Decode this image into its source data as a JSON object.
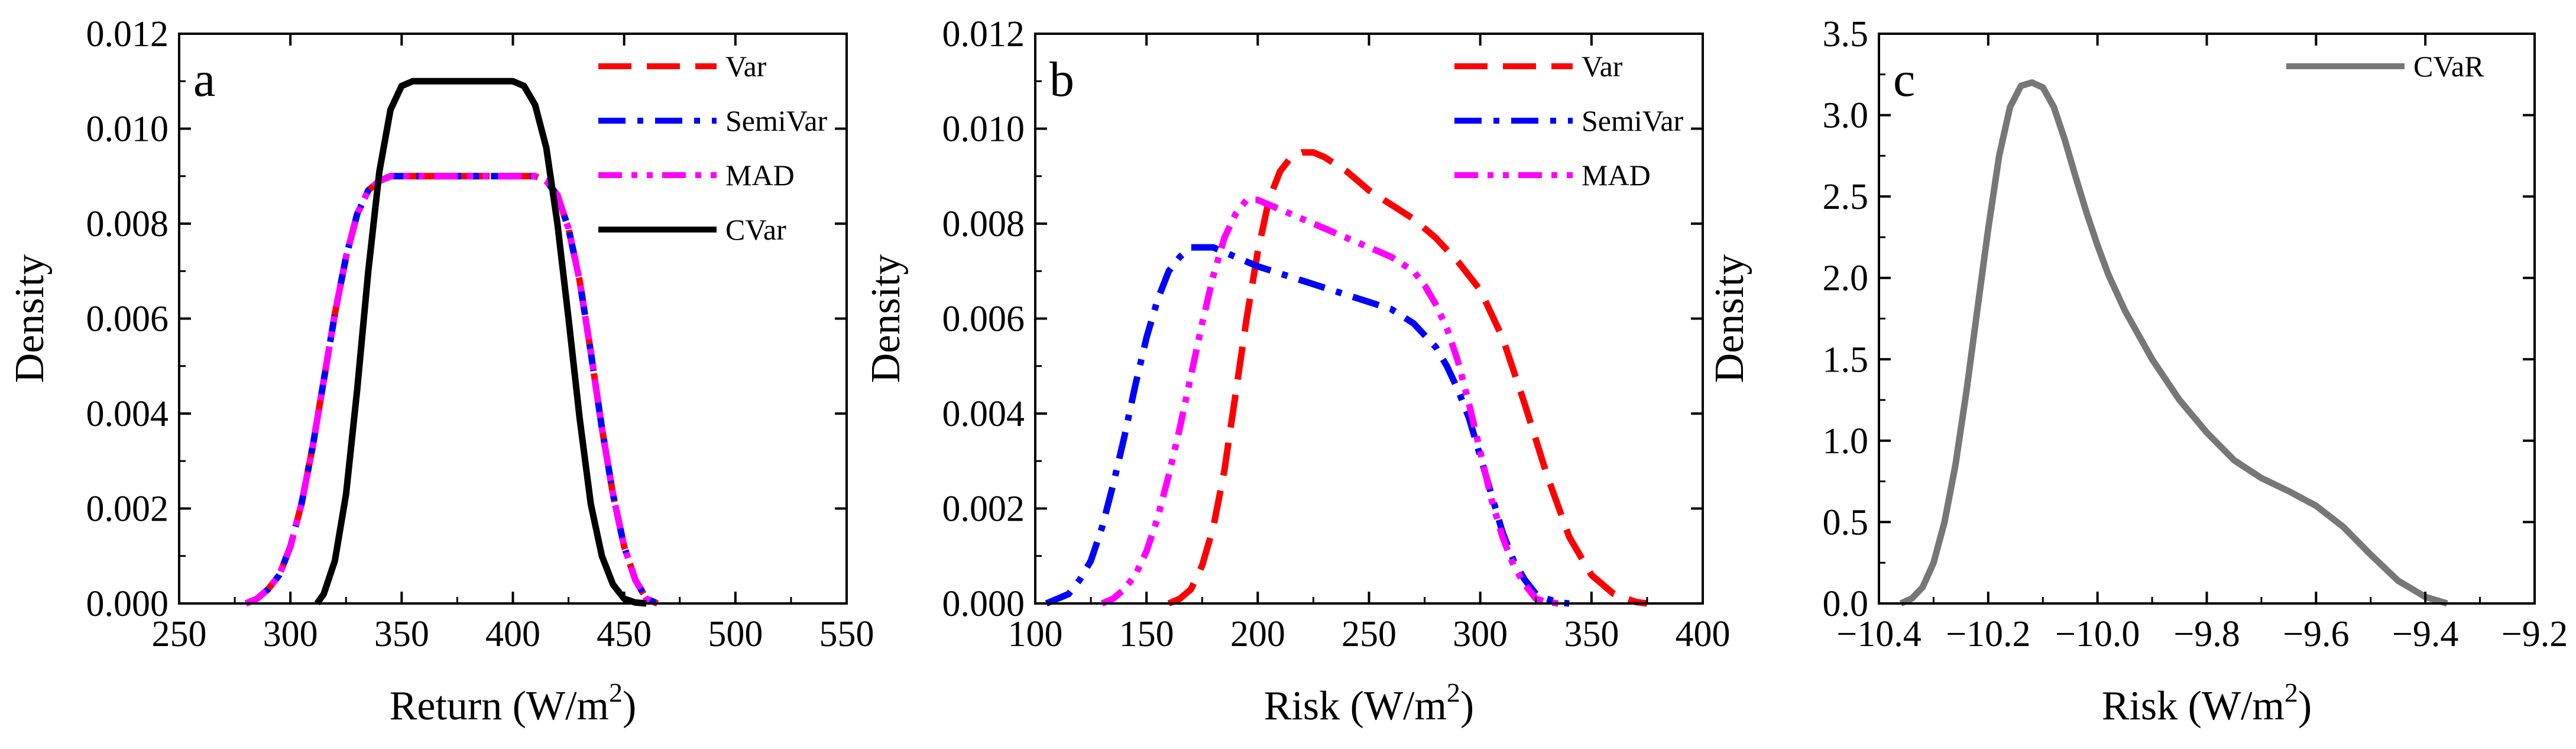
{
  "chart_data": [
    {
      "panel_label": "a",
      "type": "line",
      "xlabel": "Return (W/m",
      "xlabel_sup": "2",
      "xlabel_end": ")",
      "ylabel": "Density",
      "xlim": [
        250,
        550
      ],
      "ylim": [
        0,
        0.012
      ],
      "xticks": [
        "250",
        "300",
        "350",
        "400",
        "450",
        "500",
        "550"
      ],
      "yticks": [
        "0.000",
        "0.002",
        "0.004",
        "0.006",
        "0.008",
        "0.010",
        "0.012"
      ],
      "legend_position": "top-right",
      "series": [
        {
          "name": "Var",
          "color": "#ff0000",
          "dash": "dash",
          "x": [
            280,
            285,
            290,
            295,
            300,
            305,
            310,
            315,
            320,
            325,
            330,
            335,
            340,
            345,
            350,
            360,
            380,
            400,
            410,
            415,
            420,
            425,
            430,
            435,
            440,
            445,
            450,
            455,
            460,
            465
          ],
          "y": [
            0,
            0.0001,
            0.0003,
            0.0006,
            0.0012,
            0.0021,
            0.0033,
            0.0047,
            0.0061,
            0.0073,
            0.0082,
            0.0087,
            0.0089,
            0.009,
            0.009,
            0.009,
            0.009,
            0.009,
            0.009,
            0.0089,
            0.0086,
            0.0079,
            0.0068,
            0.0053,
            0.0037,
            0.0023,
            0.0012,
            0.0005,
            0.0001,
            0
          ]
        },
        {
          "name": "SemiVar",
          "color": "#0000ff",
          "dash": "dashdot",
          "x": [
            280,
            285,
            290,
            295,
            300,
            305,
            310,
            315,
            320,
            325,
            330,
            335,
            340,
            345,
            350,
            360,
            380,
            400,
            410,
            415,
            420,
            425,
            430,
            435,
            440,
            445,
            450,
            455,
            460,
            465
          ],
          "y": [
            0,
            0.0001,
            0.0003,
            0.0006,
            0.0012,
            0.0021,
            0.0033,
            0.0047,
            0.0061,
            0.0073,
            0.0082,
            0.0087,
            0.0089,
            0.009,
            0.009,
            0.009,
            0.009,
            0.009,
            0.009,
            0.0089,
            0.0086,
            0.0079,
            0.0068,
            0.0053,
            0.0037,
            0.0023,
            0.0012,
            0.0005,
            0.0001,
            0
          ]
        },
        {
          "name": "MAD",
          "color": "#ff00ff",
          "dash": "dashdotdot",
          "x": [
            280,
            285,
            290,
            295,
            300,
            305,
            310,
            315,
            320,
            325,
            330,
            335,
            340,
            345,
            350,
            360,
            380,
            400,
            410,
            415,
            420,
            425,
            430,
            435,
            440,
            445,
            450,
            455,
            460,
            465
          ],
          "y": [
            0,
            0.0001,
            0.0003,
            0.0006,
            0.0012,
            0.0021,
            0.0033,
            0.0047,
            0.0061,
            0.0073,
            0.0082,
            0.0087,
            0.0089,
            0.009,
            0.009,
            0.009,
            0.009,
            0.009,
            0.009,
            0.0089,
            0.0086,
            0.0079,
            0.0068,
            0.0053,
            0.0037,
            0.0023,
            0.0012,
            0.0005,
            0.0001,
            0
          ]
        },
        {
          "name": "CVar",
          "color": "#000000",
          "dash": "solid",
          "x": [
            312,
            315,
            320,
            325,
            330,
            335,
            340,
            345,
            350,
            355,
            360,
            370,
            380,
            390,
            400,
            405,
            410,
            415,
            420,
            425,
            430,
            435,
            440,
            445,
            450,
            455,
            460
          ],
          "y": [
            0,
            0.0002,
            0.0009,
            0.0023,
            0.0045,
            0.007,
            0.0091,
            0.0104,
            0.0109,
            0.011,
            0.011,
            0.011,
            0.011,
            0.011,
            0.011,
            0.0109,
            0.0105,
            0.0096,
            0.008,
            0.006,
            0.0039,
            0.0021,
            0.001,
            0.0004,
            0.0001,
            2e-05,
            0
          ]
        }
      ]
    },
    {
      "panel_label": "b",
      "type": "line",
      "xlabel": "Risk (W/m",
      "xlabel_sup": "2",
      "xlabel_end": ")",
      "ylabel": "Density",
      "xlim": [
        100,
        400
      ],
      "ylim": [
        0,
        0.012
      ],
      "xticks": [
        "100",
        "150",
        "200",
        "250",
        "300",
        "350",
        "400"
      ],
      "yticks": [
        "0.000",
        "0.002",
        "0.004",
        "0.006",
        "0.008",
        "0.010",
        "0.012"
      ],
      "legend_position": "top-right",
      "series": [
        {
          "name": "Var",
          "color": "#ff0000",
          "dash": "dash",
          "x": [
            160,
            165,
            170,
            175,
            180,
            185,
            190,
            195,
            200,
            205,
            210,
            215,
            220,
            225,
            230,
            240,
            250,
            260,
            270,
            280,
            290,
            300,
            310,
            320,
            330,
            340,
            350,
            360,
            370,
            375
          ],
          "y": [
            0,
            0.0001,
            0.0003,
            0.0008,
            0.0016,
            0.0028,
            0.0044,
            0.006,
            0.0074,
            0.0085,
            0.0091,
            0.0094,
            0.0095,
            0.0095,
            0.0094,
            0.0091,
            0.0087,
            0.0084,
            0.0081,
            0.0077,
            0.0072,
            0.0066,
            0.0056,
            0.0042,
            0.0027,
            0.0014,
            0.0006,
            0.0002,
            3e-05,
            0
          ]
        },
        {
          "name": "SemiVar",
          "color": "#0000ff",
          "dash": "dashdot",
          "x": [
            105,
            110,
            115,
            120,
            125,
            130,
            135,
            140,
            145,
            150,
            155,
            160,
            165,
            170,
            175,
            180,
            190,
            200,
            220,
            240,
            260,
            270,
            280,
            285,
            290,
            295,
            300,
            305,
            310,
            315,
            320,
            325,
            330,
            335,
            340
          ],
          "y": [
            0,
            0.0001,
            0.0002,
            0.0005,
            0.0009,
            0.0016,
            0.0025,
            0.0035,
            0.0046,
            0.0056,
            0.0064,
            0.007,
            0.0073,
            0.0075,
            0.0075,
            0.0075,
            0.0073,
            0.0071,
            0.0068,
            0.0065,
            0.0062,
            0.0059,
            0.0054,
            0.005,
            0.0045,
            0.0039,
            0.0031,
            0.0023,
            0.0015,
            0.0009,
            0.0005,
            0.0002,
            0.0001,
            2e-05,
            0
          ]
        },
        {
          "name": "MAD",
          "color": "#ff00ff",
          "dash": "dashdotdot",
          "x": [
            130,
            135,
            140,
            145,
            150,
            155,
            160,
            165,
            170,
            175,
            180,
            185,
            190,
            195,
            200,
            210,
            220,
            240,
            260,
            270,
            275,
            280,
            285,
            290,
            295,
            300,
            305,
            310,
            315,
            320,
            325,
            330,
            335
          ],
          "y": [
            0,
            0.0001,
            0.0003,
            0.0006,
            0.0011,
            0.0018,
            0.0027,
            0.0037,
            0.0048,
            0.0059,
            0.0069,
            0.0077,
            0.0082,
            0.0085,
            0.0085,
            0.0083,
            0.0081,
            0.0077,
            0.0073,
            0.007,
            0.0067,
            0.0063,
            0.0058,
            0.0051,
            0.0042,
            0.0032,
            0.0022,
            0.0014,
            0.0008,
            0.0004,
            0.0001,
            3e-05,
            0
          ]
        }
      ]
    },
    {
      "panel_label": "c",
      "type": "line",
      "xlabel": "Risk (W/m",
      "xlabel_sup": "2",
      "xlabel_end": ")",
      "ylabel": "Density",
      "xlim": [
        -10.4,
        -9.2
      ],
      "ylim": [
        0,
        3.5
      ],
      "xticks": [
        "−10.4",
        "−10.2",
        "−10.0",
        "−9.8",
        "−9.6",
        "−9.4",
        "−9.2"
      ],
      "yticks": [
        "0.0",
        "0.5",
        "1.0",
        "1.5",
        "2.0",
        "2.5",
        "3.0",
        "3.5"
      ],
      "legend_position": "top-right",
      "series": [
        {
          "name": "CVaR",
          "color": "#777777",
          "dash": "solid",
          "x": [
            -10.36,
            -10.34,
            -10.32,
            -10.3,
            -10.28,
            -10.26,
            -10.24,
            -10.22,
            -10.2,
            -10.18,
            -10.16,
            -10.14,
            -10.12,
            -10.1,
            -10.08,
            -10.06,
            -10.04,
            -10.02,
            -10.0,
            -9.98,
            -9.95,
            -9.9,
            -9.85,
            -9.8,
            -9.75,
            -9.7,
            -9.65,
            -9.6,
            -9.55,
            -9.5,
            -9.45,
            -9.4,
            -9.36
          ],
          "y": [
            0,
            0.03,
            0.1,
            0.25,
            0.5,
            0.85,
            1.3,
            1.8,
            2.3,
            2.75,
            3.05,
            3.18,
            3.2,
            3.17,
            3.05,
            2.85,
            2.62,
            2.4,
            2.2,
            2.02,
            1.8,
            1.5,
            1.25,
            1.05,
            0.88,
            0.77,
            0.69,
            0.6,
            0.47,
            0.3,
            0.14,
            0.04,
            0
          ]
        }
      ]
    }
  ]
}
